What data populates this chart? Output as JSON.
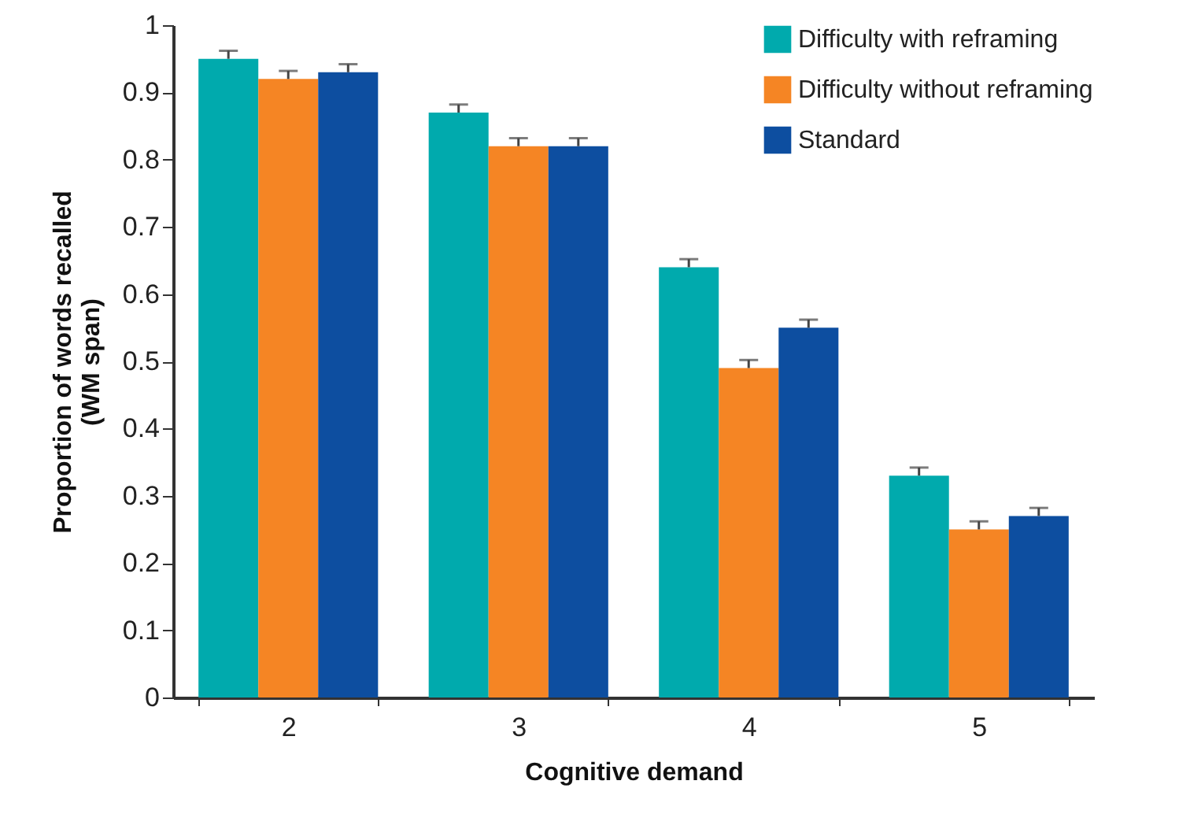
{
  "chart_data": {
    "type": "bar",
    "xlabel": "Cognitive demand",
    "ylabel": "Proportion of words recalled\n(WM span)",
    "categories": [
      "2",
      "3",
      "4",
      "5"
    ],
    "series": [
      {
        "name": "Difficulty with reframing",
        "color": "#00aaad",
        "values": [
          0.95,
          0.87,
          0.64,
          0.33
        ],
        "errors": [
          [
            0.95,
            0.962
          ],
          [
            0.87,
            0.882
          ],
          [
            0.64,
            0.652
          ],
          [
            0.33,
            0.342
          ]
        ]
      },
      {
        "name": "Difficulty without reframing",
        "color": "#f58524",
        "values": [
          0.92,
          0.82,
          0.49,
          0.25
        ],
        "errors": [
          [
            0.92,
            0.932
          ],
          [
            0.82,
            0.832
          ],
          [
            0.49,
            0.502
          ],
          [
            0.25,
            0.262
          ]
        ]
      },
      {
        "name": "Standard",
        "color": "#0d4ea0",
        "values": [
          0.93,
          0.82,
          0.55,
          0.27
        ],
        "errors": [
          [
            0.93,
            0.942
          ],
          [
            0.82,
            0.832
          ],
          [
            0.55,
            0.562
          ],
          [
            0.27,
            0.282
          ]
        ]
      }
    ],
    "ylim": [
      0,
      1
    ],
    "yticks": [
      0,
      0.1,
      0.2,
      0.3,
      0.4,
      0.5,
      0.6,
      0.7,
      0.8,
      0.9,
      1
    ],
    "legend": "top right",
    "grid": false
  }
}
